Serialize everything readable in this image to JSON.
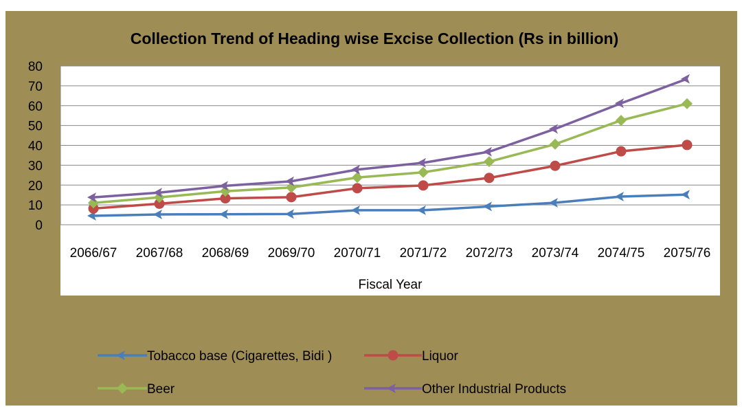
{
  "chart_data": {
    "type": "line",
    "title": "Collection Trend of Heading wise Excise Collection (Rs in billion)",
    "xlabel": "Fiscal Year",
    "ylabel": "",
    "ylim": [
      0,
      80
    ],
    "yticks": [
      0,
      10,
      20,
      30,
      40,
      50,
      60,
      70,
      80
    ],
    "grid": true,
    "legend_position": "bottom",
    "categories": [
      "2066/67",
      "2067/68",
      "2068/69",
      "2069/70",
      "2070/71",
      "2071/72",
      "2072/73",
      "2073/74",
      "2074/75",
      "2075/76"
    ],
    "series": [
      {
        "name": "Tobacco base (Cigarettes, Bidi )",
        "color": "#4a7ebb",
        "marker": "arrow-left",
        "values": [
          4.5,
          5.2,
          5.3,
          5.4,
          7.3,
          7.3,
          9.2,
          11.1,
          14.2,
          15.2
        ]
      },
      {
        "name": "Liquor",
        "color": "#be4b48",
        "marker": "circle",
        "values": [
          8.2,
          10.6,
          13.3,
          13.9,
          18.4,
          19.8,
          23.6,
          29.7,
          37.0,
          40.2
        ]
      },
      {
        "name": "Beer",
        "color": "#98b954",
        "marker": "diamond",
        "values": [
          11.0,
          13.8,
          16.9,
          18.8,
          23.8,
          26.4,
          31.8,
          40.6,
          52.6,
          61.0
        ]
      },
      {
        "name": "Other Industrial Products",
        "color": "#7d60a0",
        "marker": "arrow-left",
        "values": [
          13.8,
          16.2,
          19.6,
          21.9,
          27.8,
          31.2,
          36.8,
          48.3,
          61.2,
          73.5
        ]
      }
    ]
  },
  "colors": {
    "chart_area": "#9f8d56",
    "plot_area": "#ffffff",
    "gridline": "#868686",
    "text": "#000000"
  }
}
